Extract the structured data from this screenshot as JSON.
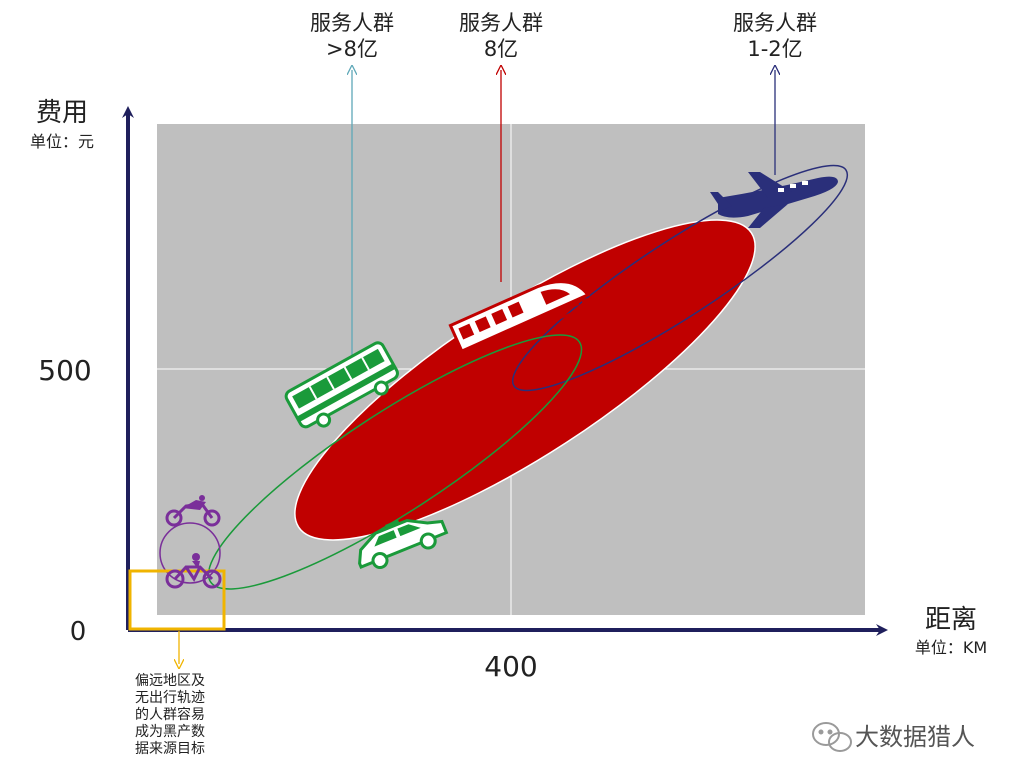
{
  "colors": {
    "axis": "#1f1f5c",
    "plot_bg": "#bfbfbf",
    "bus": "#1a9a3a",
    "train": "#c00000",
    "plane": "#2a2f7a",
    "cyclist": "#7a2f9a",
    "remote_box": "#f0b400",
    "service_bus_arrow": "#5fa8b8",
    "service_train_arrow": "#c00000",
    "service_plane_arrow": "#2a2f7a"
  },
  "axes": {
    "y_title": "费用",
    "y_unit": "单位：元",
    "x_title": "距离",
    "x_unit": "单位：KM",
    "origin_label": "0",
    "y_mid_label": "500",
    "x_mid_label": "400"
  },
  "service": {
    "bus": {
      "line1": "服务人群",
      "line2": ">8亿"
    },
    "train": {
      "line1": "服务人群",
      "line2": "8亿"
    },
    "plane": {
      "line1": "服务人群",
      "line2": "1-2亿"
    }
  },
  "remote_note": {
    "lines": [
      "偏远地区及",
      "无出行轨迹",
      "的人群容易",
      "成为黑产数",
      "据来源目标"
    ]
  },
  "watermark": {
    "text": "大数据猎人",
    "icon": "wechat-icon"
  },
  "icons": [
    "motorcycle-icon",
    "bicycle-icon",
    "bus-icon",
    "taxi-icon",
    "train-icon",
    "airplane-icon"
  ]
}
